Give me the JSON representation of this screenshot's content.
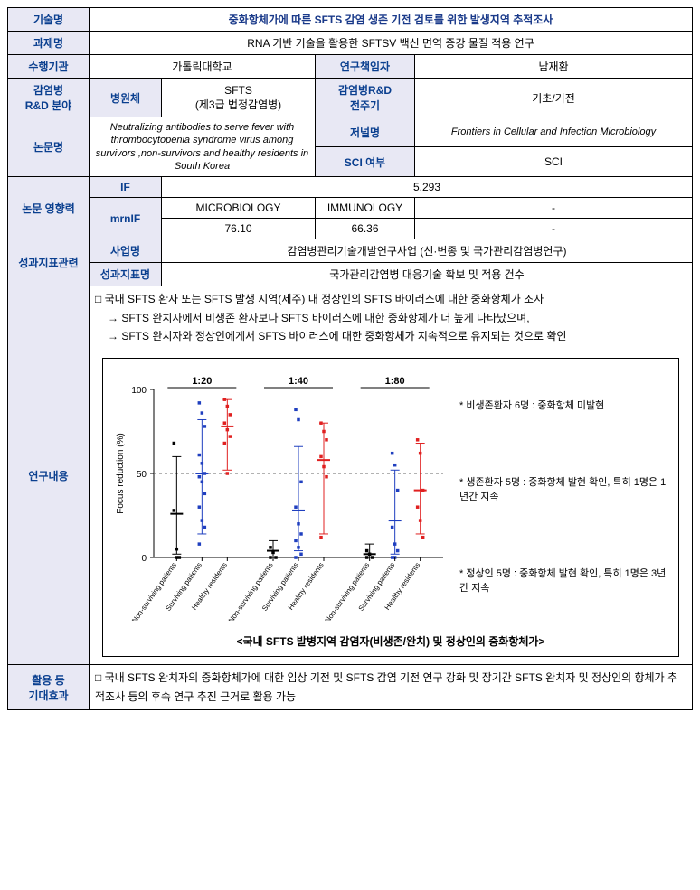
{
  "labels": {
    "tech_name": "기술명",
    "proj_name": "과제명",
    "org": "수행기관",
    "pi": "연구책임자",
    "id_field": "감염병\nR&D 분야",
    "pathogen": "병원체",
    "rnd_cycle": "감염병R&D\n전주기",
    "paper": "논문명",
    "journal": "저널명",
    "sci": "SCI 여부",
    "impact": "논문 영향력",
    "if": "IF",
    "mrnif": "mrnIF",
    "perf": "성과지표관련",
    "program": "사업명",
    "indicator": "성과지표명",
    "content": "연구내용",
    "outcome": "활용 등\n기대효과"
  },
  "meta": {
    "tech_name": "중화항체가에 따른 SFTS 감염 생존 기전 검토를 위한 발생지역 추적조사",
    "proj_name": "RNA 기반 기술을 활용한 SFTSV 백신 면역 증강 물질 적용 연구",
    "org": "가톨릭대학교",
    "pi": "남재환",
    "pathogen": "SFTS\n(제3급 법정감염병)",
    "rnd_cycle": "기초/기전",
    "paper_title": "Neutralizing antibodies to serve fever with thrombocytopenia syndrome virus among survivors ,non-survivors and healthy residents in South Korea",
    "journal": "Frontiers in Cellular and Infection Microbiology",
    "sci": "SCI",
    "if": "5.293",
    "mrnif_cat1": "MICROBIOLOGY",
    "mrnif_cat2": "IMMUNOLOGY",
    "mrnif_cat3": "-",
    "mrnif_val1": "76.10",
    "mrnif_val2": "66.36",
    "mrnif_val3": "-",
    "program": "감염병관리기술개발연구사업 (신·변종 및 국가관리감염병연구)",
    "indicator": "국가관리감염병 대응기술 확보 및 적용 건수"
  },
  "content": {
    "line1": "□ 국내 SFTS 환자 또는 SFTS 발생 지역(제주) 내 정상인의 SFTS 바이러스에 대한 중화항체가 조사",
    "line2": "→ SFTS 완치자에서 비생존 환자보다 SFTS 바이러스에 대한 중화항체가 더 높게 나타났으며,",
    "line3": "→ SFTS 완치자와 정상인에게서 SFTS 바이러스에 대한 중화항체가 지속적으로 유지되는 것으로 확인"
  },
  "chart": {
    "ylabel": "Focus reduction (%)",
    "ylim": [
      0,
      100
    ],
    "yticks": [
      0,
      50,
      100
    ],
    "ref_line": 50,
    "groups": [
      "1:20",
      "1:40",
      "1:80"
    ],
    "categories": [
      "Non-surviving patients",
      "Surviving patients",
      "Healthy residents"
    ],
    "colors": {
      "non_surviving": "#000000",
      "surviving": "#1f3fbf",
      "healthy": "#e02020",
      "ref_line": "#666666",
      "axis": "#000000"
    },
    "marker_size": 3.5,
    "error_cap": 5,
    "series": {
      "1:20": {
        "non_surviving": {
          "points": [
            28,
            5,
            0,
            68,
            0
          ],
          "mean": 26,
          "lo": 2,
          "hi": 60
        },
        "surviving": {
          "points": [
            92,
            86,
            78,
            61,
            56,
            50,
            48,
            45,
            38,
            30,
            22,
            18,
            8
          ],
          "mean": 50,
          "lo": 14,
          "hi": 82
        },
        "healthy": {
          "points": [
            94,
            90,
            85,
            80,
            76,
            72,
            68,
            50
          ],
          "mean": 78,
          "lo": 52,
          "hi": 94
        }
      },
      "1:40": {
        "non_surviving": {
          "points": [
            6,
            3,
            0,
            0
          ],
          "mean": 4,
          "lo": 0,
          "hi": 10
        },
        "surviving": {
          "points": [
            88,
            82,
            45,
            30,
            20,
            14,
            10,
            6,
            2,
            0
          ],
          "mean": 28,
          "lo": 4,
          "hi": 66
        },
        "healthy": {
          "points": [
            80,
            75,
            70,
            60,
            54,
            48,
            12
          ],
          "mean": 58,
          "lo": 14,
          "hi": 80
        }
      },
      "1:80": {
        "non_surviving": {
          "points": [
            4,
            2,
            0,
            0
          ],
          "mean": 2,
          "lo": 0,
          "hi": 8
        },
        "surviving": {
          "points": [
            62,
            55,
            40,
            18,
            8,
            4,
            0,
            0
          ],
          "mean": 22,
          "lo": 2,
          "hi": 52
        },
        "healthy": {
          "points": [
            70,
            62,
            40,
            30,
            22,
            12
          ],
          "mean": 40,
          "lo": 14,
          "hi": 68
        }
      }
    },
    "notes": {
      "n1": "* 비생존환자 6명 : 중화항체 미발현",
      "n2": "* 생존환자 5명 : 중화항체 발현 확인, 특히 1명은 1년간 지속",
      "n3": "* 정상인 5명 : 중화항체 발현 확인, 특히 1명은 3년간 지속"
    },
    "caption": "<국내 SFTS 발병지역 감염자(비생존/완치) 및 정상인의 중화항체가>"
  },
  "outcome": {
    "text": "□ 국내 SFTS 완치자의 중화항체가에 대한 임상 기전 및 SFTS 감염 기전 연구 강화 및 장기간 SFTS 완치자 및 정상인의 항체가 추적조사 등의 후속 연구 추진 근거로 활용 가능"
  }
}
